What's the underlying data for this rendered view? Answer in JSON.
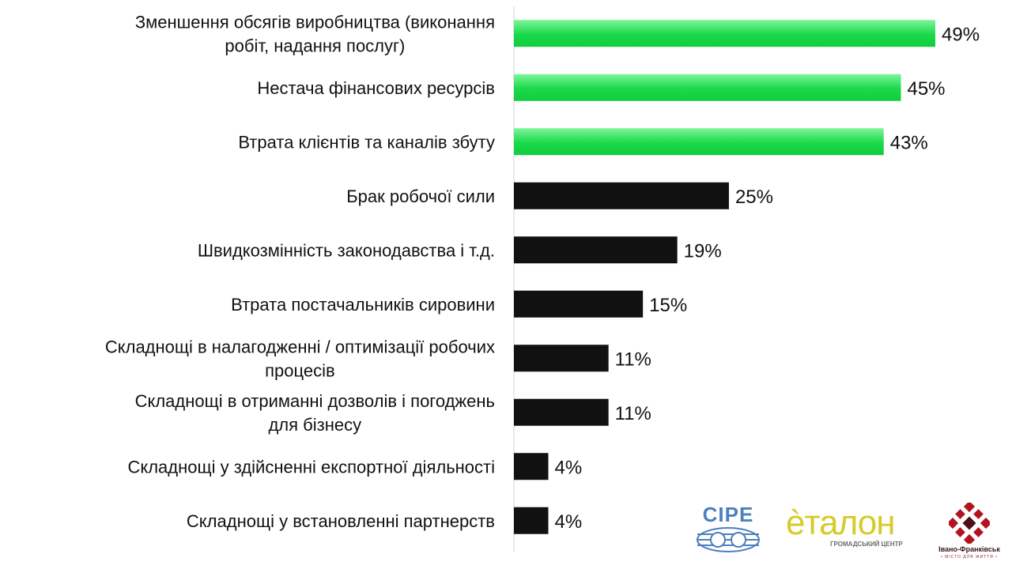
{
  "chart_data": {
    "type": "bar",
    "orientation": "horizontal",
    "title": "",
    "xlabel": "",
    "ylabel": "",
    "xlim": [
      0,
      49
    ],
    "grid": false,
    "categories": [
      [
        "Зменшення обсягів виробництва (виконання",
        "робіт, надання послуг)"
      ],
      [
        "Нестача фінансових ресурсів"
      ],
      [
        "Втрата клієнтів та каналів збуту"
      ],
      [
        "Брак робочої сили"
      ],
      [
        "Швидкозмінність законодавства і т.д."
      ],
      [
        "Втрата постачальників сировини"
      ],
      [
        "Складнощі в налагодженні / оптимізації робочих",
        "процесів"
      ],
      [
        "Складнощі в отриманні дозволів і погоджень",
        "для бізнесу"
      ],
      [
        "Складнощі у здійсненні експортної діяльності"
      ],
      [
        "Складнощі у встановленні партнерств"
      ]
    ],
    "values": [
      49,
      45,
      43,
      25,
      19,
      15,
      11,
      11,
      4,
      4
    ],
    "value_labels": [
      "49%",
      "45%",
      "43%",
      "25%",
      "19%",
      "15%",
      "11%",
      "11%",
      "4%",
      "4%"
    ],
    "colors": {
      "highlight": "#1ad94a",
      "highlight_light": "#7ff59a",
      "default": "#111111",
      "axis": "#d0d0d0"
    },
    "highlighted_top": 3
  },
  "logos": {
    "cipe": {
      "text": "CIPE"
    },
    "etalon": {
      "text": "èталон",
      "subtitle": "ГРОМАДСЬКИЙ ЦЕНТР"
    },
    "city": {
      "name": "Івано-Франківськ",
      "motto": "• МІСТО ДЛЯ ЖИТТЯ •"
    }
  }
}
